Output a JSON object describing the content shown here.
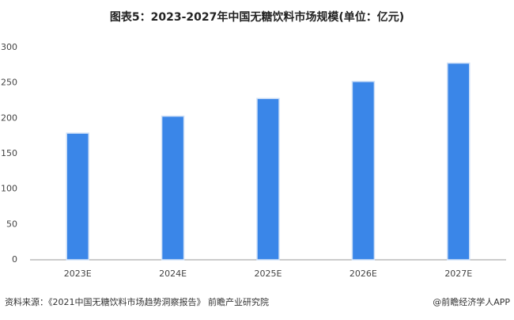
{
  "chart_data": {
    "type": "bar",
    "title": "图表5：2023-2027年中国无糖饮料市场规模(单位：亿元)",
    "categories": [
      "2023E",
      "2024E",
      "2025E",
      "2026E",
      "2027E"
    ],
    "values": [
      179,
      203,
      228,
      252,
      278
    ],
    "color": "#3a86e8",
    "ylim": [
      0,
      300
    ],
    "yticks": [
      0,
      50,
      100,
      150,
      200,
      250,
      300
    ],
    "grid": false
  },
  "footer": {
    "source": "资料来源：《2021中国无糖饮料市场趋势洞察报告》 前瞻产业研究院",
    "brand": "@前瞻经济学人APP"
  }
}
